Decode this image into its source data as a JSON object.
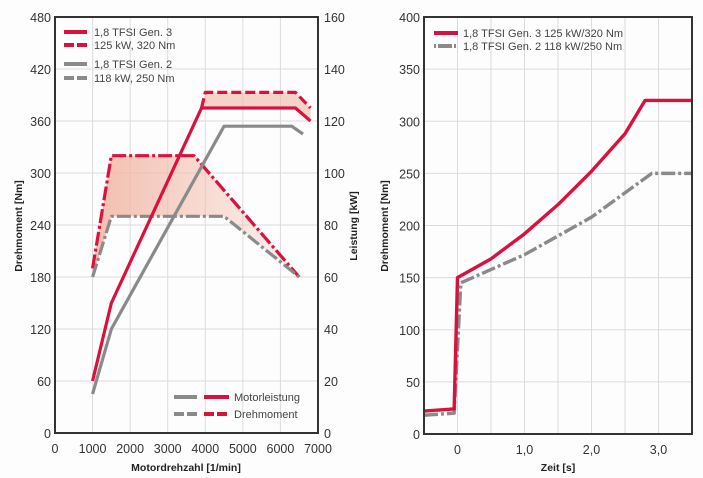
{
  "colors": {
    "gen3": "#d9123d",
    "gen2": "#8a8a8a",
    "fill": "#f2b7a6"
  },
  "chart_data": [
    {
      "type": "line",
      "title": "",
      "xlabel": "Motordrehzahl [1/min]",
      "ylabel": "Drehmoment [Nm]",
      "y2label": "Leistung [kW]",
      "xlim": [
        0,
        7000
      ],
      "ylim": [
        0,
        480
      ],
      "y2lim": [
        0,
        160
      ],
      "xticks": [
        "0",
        "1000",
        "2000",
        "3000",
        "4000",
        "5000",
        "6000",
        "7000"
      ],
      "yticks": [
        "0",
        "60",
        "120",
        "180",
        "240",
        "300",
        "360",
        "420",
        "480"
      ],
      "y2ticks": [
        "0",
        "20",
        "40",
        "60",
        "80",
        "100",
        "120",
        "140",
        "160"
      ],
      "grid": true,
      "legend_engines": {
        "placement": "top-left",
        "entries": [
          {
            "line1": "1,8 TFSI Gen. 3",
            "line2": "125 kW, 320 Nm",
            "series": "gen3"
          },
          {
            "line1": "1,8 TFSI Gen. 2",
            "line2": "118 kW, 250 Nm",
            "series": "gen2"
          }
        ]
      },
      "legend_types": {
        "placement": "bottom-right",
        "entries": [
          {
            "label": "Motorleistung",
            "style": "solid"
          },
          {
            "label": "Drehmoment",
            "style": "dash-dot"
          }
        ]
      },
      "series": [
        {
          "name": "Gen. 3 Drehmoment",
          "axis": "left",
          "style": "dash-dot",
          "color_key": "gen3",
          "x": [
            1000,
            1500,
            3700,
            6500
          ],
          "y": [
            190,
            320,
            320,
            180
          ]
        },
        {
          "name": "Gen. 2 Drehmoment",
          "axis": "left",
          "style": "dash-dot",
          "color_key": "gen2",
          "x": [
            1000,
            1500,
            4500,
            6500
          ],
          "y": [
            180,
            250,
            250,
            180
          ]
        },
        {
          "name": "Gen. 3 Leistung",
          "axis": "right",
          "style": "solid",
          "color_key": "gen3",
          "x": [
            1000,
            1500,
            3900,
            6400,
            6800
          ],
          "y": [
            20,
            50,
            125,
            125,
            120
          ]
        },
        {
          "name": "Gen. 3 Leistung (Spitze)",
          "axis": "right",
          "style": "dashed",
          "color_key": "gen3",
          "x": [
            3900,
            4000,
            6400,
            6800
          ],
          "y": [
            125,
            131,
            131,
            125
          ]
        },
        {
          "name": "Gen. 2 Leistung",
          "axis": "right",
          "style": "solid",
          "color_key": "gen2",
          "x": [
            1000,
            1500,
            4500,
            6300,
            6600
          ],
          "y": [
            15,
            40,
            118,
            118,
            115
          ]
        }
      ]
    },
    {
      "type": "line",
      "title": "",
      "xlabel": "Zeit [s]",
      "ylabel": "Drehmoment [Nm]",
      "xlim": [
        -0.5,
        3.5
      ],
      "ylim": [
        0,
        400
      ],
      "xticks": [
        "0",
        "1,0",
        "2,0",
        "3,0"
      ],
      "xtick_values": [
        0,
        1,
        2,
        3
      ],
      "yticks": [
        "0",
        "50",
        "100",
        "150",
        "200",
        "250",
        "300",
        "350",
        "400"
      ],
      "grid": true,
      "legend": {
        "placement": "top-left",
        "entries": [
          {
            "label": "1,8 TFSI Gen. 3 125 kW/320 Nm",
            "color_key": "gen3",
            "style": "solid"
          },
          {
            "label": "1,8 TFSI Gen. 2 118 kW/250 Nm",
            "color_key": "gen2",
            "style": "dash-dot"
          }
        ]
      },
      "series": [
        {
          "name": "1,8 TFSI Gen. 3 125 kW/320 Nm",
          "style": "solid",
          "color_key": "gen3",
          "x": [
            -0.5,
            -0.05,
            0.0,
            0.5,
            1.0,
            1.5,
            2.0,
            2.5,
            2.8,
            3.5
          ],
          "y": [
            22,
            24,
            150,
            168,
            192,
            220,
            252,
            288,
            320,
            320
          ]
        },
        {
          "name": "1,8 TFSI Gen. 2 118 kW/250 Nm",
          "style": "dash-dot",
          "color_key": "gen2",
          "x": [
            -0.5,
            -0.05,
            0.05,
            1.0,
            2.0,
            2.9,
            3.5
          ],
          "y": [
            18,
            20,
            145,
            172,
            208,
            250,
            250
          ]
        }
      ]
    }
  ]
}
